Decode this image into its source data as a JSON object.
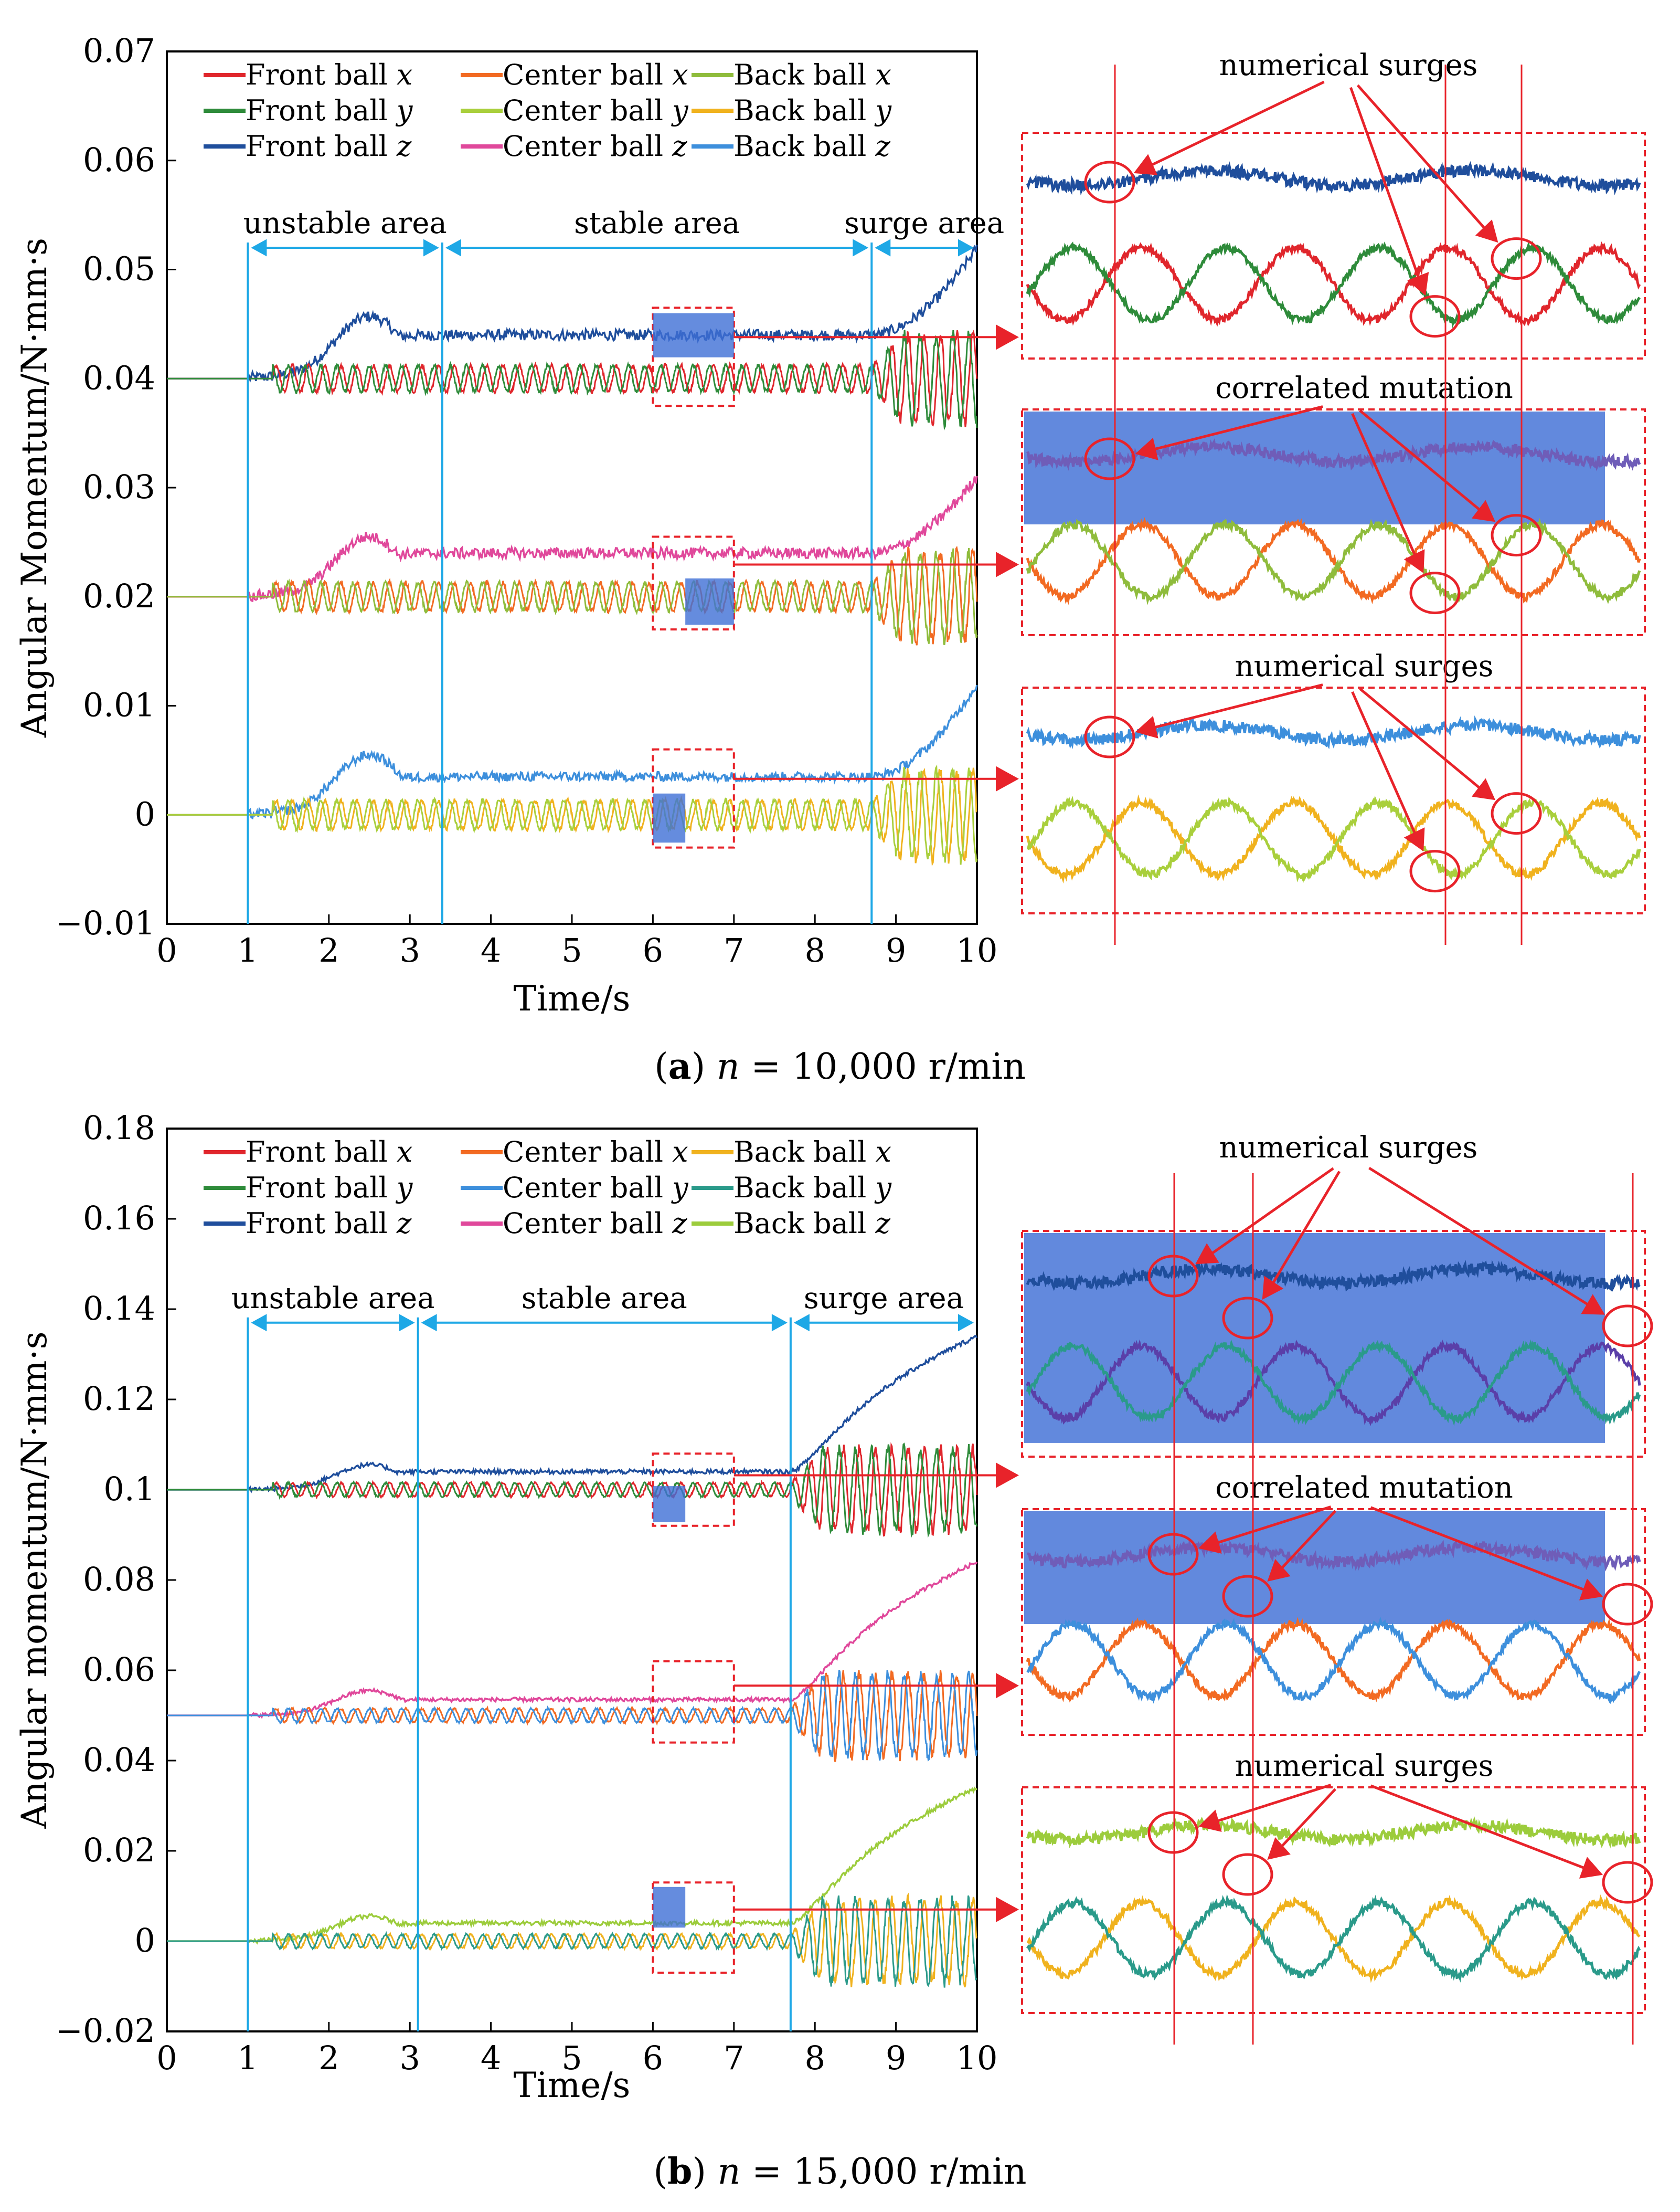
{
  "chart_data": [
    {
      "type": "line",
      "id": "a",
      "caption": {
        "letter": "a",
        "open": "(",
        "close": ")",
        "text": " = 10,000 r/min",
        "var": "n"
      },
      "xlabel": "Time/s",
      "ylabel": "Angular Momentum/N·mm·s",
      "xlim": [
        0,
        10
      ],
      "ylim": [
        -0.01,
        0.07
      ],
      "xticks": [
        0,
        1,
        2,
        3,
        4,
        5,
        6,
        7,
        8,
        9,
        10
      ],
      "yticks": [
        -0.01,
        0,
        0.01,
        0.02,
        0.03,
        0.04,
        0.05,
        0.06,
        0.07
      ],
      "ytick_labels": [
        "−0.01",
        "0",
        "0.01",
        "0.02",
        "0.03",
        "0.04",
        "0.05",
        "0.06",
        "0.07"
      ],
      "regions": [
        {
          "label": "unstable area",
          "from": 1,
          "to": 3.4
        },
        {
          "label": "stable area",
          "from": 3.4,
          "to": 8.7
        },
        {
          "label": "surge area",
          "from": 8.7,
          "to": 10
        }
      ],
      "region_arrow_y": 0.052,
      "legend": [
        {
          "label": "Front ball ",
          "var": "x",
          "color": "#e0262c"
        },
        {
          "label": "Center ball ",
          "var": "x",
          "color": "#f26a22"
        },
        {
          "label": "Back ball ",
          "var": "x",
          "color": "#8fbc3c"
        },
        {
          "label": "Front ball ",
          "var": "y",
          "color": "#2e8b3a"
        },
        {
          "label": "Center ball ",
          "var": "y",
          "color": "#a9cf3c"
        },
        {
          "label": "Back ball ",
          "var": "y",
          "color": "#f0b21e"
        },
        {
          "label": "Front ball ",
          "var": "z",
          "color": "#1f4e9c"
        },
        {
          "label": "Center ball ",
          "var": "z",
          "color": "#e0489b"
        },
        {
          "label": "Back ball ",
          "var": "z",
          "color": "#3d8fdc"
        }
      ],
      "groups": [
        {
          "base": 0.04,
          "z_color": "#1f4e9c",
          "z_peak": 0.0057,
          "z_plateau": 0.004,
          "z_end": 0.052,
          "osc": [
            "#e0262c",
            "#2e8b3a"
          ],
          "amp": 0.0012,
          "surge_amp": 0.004,
          "period": 0.2
        },
        {
          "base": 0.02,
          "z_color": "#e0489b",
          "z_peak": 0.0055,
          "z_plateau": 0.004,
          "z_end": 0.031,
          "osc": [
            "#f26a22",
            "#8fbc3c"
          ],
          "amp": 0.0013,
          "surge_amp": 0.004,
          "period": 0.2
        },
        {
          "base": 0.0,
          "z_color": "#3d8fdc",
          "z_peak": 0.0055,
          "z_plateau": 0.0035,
          "z_end": 0.012,
          "osc": [
            "#f0b21e",
            "#a9cf3c"
          ],
          "amp": 0.0013,
          "surge_amp": 0.004,
          "period": 0.2
        }
      ],
      "surge_start": 8.7,
      "zoom_window": [
        6,
        7
      ],
      "zoom_rows": [
        {
          "y_range": [
            0.0375,
            0.0465
          ],
          "label": "",
          "panel_z": "#1f4e9c",
          "panel_a": "#e0262c",
          "panel_b": "#2e8b3a",
          "blue_box": false
        },
        {
          "y_range": [
            0.017,
            0.0255
          ],
          "label": "correlated mutation",
          "panel_z": "#6f5db8",
          "panel_a": "#f26a22",
          "panel_b": "#8fbc3c",
          "blue_box": true
        },
        {
          "y_range": [
            -0.003,
            0.006
          ],
          "label": "numerical surges",
          "panel_z": "#3d8fdc",
          "panel_a": "#f0b21e",
          "panel_b": "#a9cf3c",
          "blue_box": false
        }
      ],
      "top_label": "numerical surges"
    },
    {
      "type": "line",
      "id": "b",
      "caption": {
        "letter": "b",
        "open": "(",
        "close": ")",
        "text": " = 15,000 r/min",
        "var": "n"
      },
      "xlabel": "Time/s",
      "ylabel": "Angular momentum/N·mm·s",
      "xlim": [
        0,
        10
      ],
      "ylim": [
        -0.02,
        0.18
      ],
      "xticks": [
        0,
        1,
        2,
        3,
        4,
        5,
        6,
        7,
        8,
        9,
        10
      ],
      "yticks": [
        -0.02,
        0,
        0.02,
        0.04,
        0.06,
        0.08,
        0.1,
        0.12,
        0.14,
        0.16,
        0.18
      ],
      "ytick_labels": [
        "−0.02",
        "0",
        "0.02",
        "0.04",
        "0.06",
        "0.08",
        "0.1",
        "0.12",
        "0.14",
        "0.16",
        "0.18"
      ],
      "regions": [
        {
          "label": "unstable area",
          "from": 1,
          "to": 3.1
        },
        {
          "label": "stable area",
          "from": 3.1,
          "to": 7.7
        },
        {
          "label": "surge area",
          "from": 7.7,
          "to": 10
        }
      ],
      "region_arrow_y": 0.137,
      "legend": [
        {
          "label": "Front ball ",
          "var": "x",
          "color": "#e0262c"
        },
        {
          "label": "Center ball ",
          "var": "x",
          "color": "#f26a22"
        },
        {
          "label": "Back ball ",
          "var": "x",
          "color": "#f0b21e"
        },
        {
          "label": "Front ball ",
          "var": "y",
          "color": "#2e8b3a"
        },
        {
          "label": "Center ball ",
          "var": "y",
          "color": "#3d8fdc"
        },
        {
          "label": "Back ball ",
          "var": "y",
          "color": "#2a9a8a"
        },
        {
          "label": "Front ball ",
          "var": "z",
          "color": "#1f4e9c"
        },
        {
          "label": "Center ball ",
          "var": "z",
          "color": "#e0489b"
        },
        {
          "label": "Back ball ",
          "var": "z",
          "color": "#9ccc3c"
        }
      ],
      "groups": [
        {
          "base": 0.1,
          "z_color": "#1f4e9c",
          "z_peak": 0.0055,
          "z_plateau": 0.004,
          "z_end": 0.134,
          "osc": [
            "#e0262c",
            "#2e8b3a"
          ],
          "amp": 0.0015,
          "surge_amp": 0.009,
          "period": 0.2
        },
        {
          "base": 0.05,
          "z_color": "#e0489b",
          "z_peak": 0.0055,
          "z_plateau": 0.0035,
          "z_end": 0.084,
          "osc": [
            "#f26a22",
            "#3d8fdc"
          ],
          "amp": 0.0015,
          "surge_amp": 0.009,
          "period": 0.2
        },
        {
          "base": 0.0,
          "z_color": "#9ccc3c",
          "z_peak": 0.0055,
          "z_plateau": 0.004,
          "z_end": 0.034,
          "osc": [
            "#f0b21e",
            "#2a9a8a"
          ],
          "amp": 0.0015,
          "surge_amp": 0.009,
          "period": 0.2
        }
      ],
      "surge_start": 7.7,
      "zoom_window": [
        6,
        7
      ],
      "zoom_rows": [
        {
          "y_range": [
            0.092,
            0.108
          ],
          "label": "",
          "panel_z": "#1f4e9c",
          "panel_a": "#5a3fa8",
          "panel_b": "#2a9a8a",
          "blue_box": true
        },
        {
          "y_range": [
            0.044,
            0.062
          ],
          "label": "correlated mutation",
          "panel_z": "#6f5db8",
          "panel_a": "#f26a22",
          "panel_b": "#3d8fdc",
          "blue_box": true
        },
        {
          "y_range": [
            -0.007,
            0.013
          ],
          "label": "numerical surges",
          "panel_z": "#9ccc3c",
          "panel_a": "#f0b21e",
          "panel_b": "#2a9a8a",
          "blue_box": false
        }
      ],
      "top_label": "numerical surges"
    }
  ]
}
